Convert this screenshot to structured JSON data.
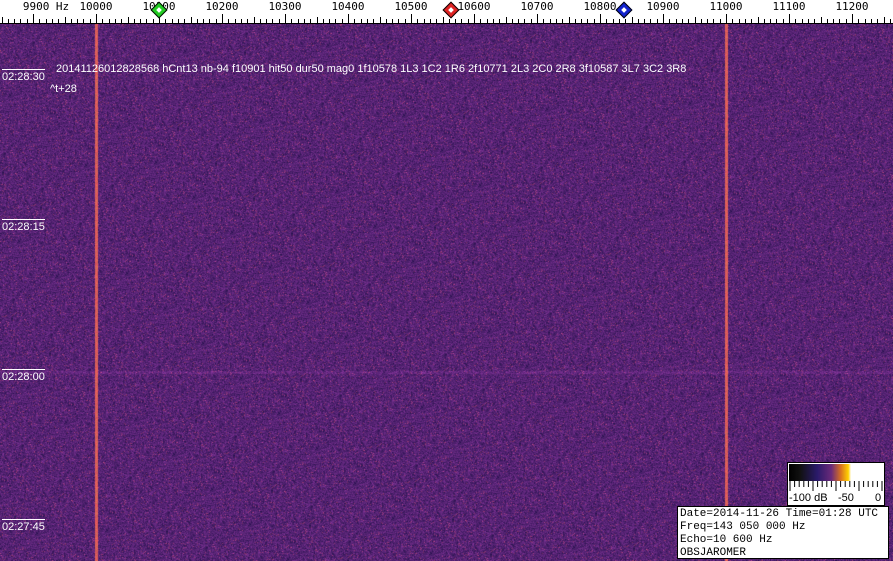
{
  "chart_data": {
    "type": "heatmap",
    "title": "",
    "x_unit": "Hz",
    "x_tick_labels": [
      "9900 Hz",
      "10000",
      "10100",
      "10200",
      "10300",
      "10400",
      "10500",
      "10600",
      "10700",
      "10800",
      "10900",
      "11000",
      "11100",
      "11200"
    ],
    "xlim": [
      9850,
      11260
    ],
    "y_tick_labels": [
      "02:28:30",
      "02:28:15",
      "02:28:00",
      "02:27:45"
    ],
    "carriers_hz": [
      10000,
      11000
    ],
    "markers": [
      {
        "freq_hz": 10100,
        "color": "#22cc22"
      },
      {
        "freq_hz": 10563,
        "color": "#dd2222"
      },
      {
        "freq_hz": 10838,
        "color": "#1122cc"
      }
    ],
    "colorbar": {
      "labels": [
        "-100 dB",
        "-50",
        "0"
      ],
      "range_db": [
        -100,
        0
      ]
    },
    "background_color": "#3a2070"
  },
  "annotation": {
    "line1": "20141126012828568 hCnt13 nb-94 f10901 hit50 dur50 mag0 1f10578 1L3 1C2 1R6 2f10771 2L3 2C0 2R8 3f10587 3L7 3C2 3R8",
    "line2": "^t+28"
  },
  "info": {
    "date_time": "Date=2014-11-26 Time=01:28 UTC",
    "freq": "Freq=143 050 000 Hz",
    "echo": "Echo=10 600 Hz",
    "observer": "OBSJAROMER"
  }
}
